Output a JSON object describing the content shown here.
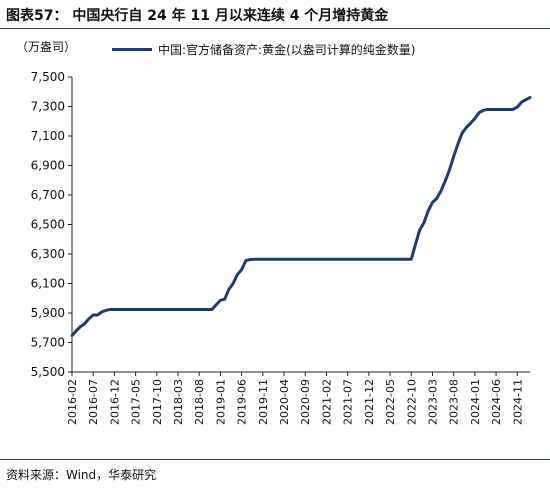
{
  "header": {
    "title": "图表57：  中国央行自 24 年 11 月以来连续 4 个月增持黄金",
    "source": "资料来源：Wind，华泰研究"
  },
  "chart_data": {
    "type": "line",
    "ylabel": "（万盎司）",
    "ylim": [
      5500,
      7500
    ],
    "yticks": [
      5500,
      5700,
      5900,
      6100,
      6300,
      6500,
      6700,
      6900,
      7100,
      7300,
      7500
    ],
    "ytick_labels": [
      "5,500",
      "5,700",
      "5,900",
      "6,100",
      "6,300",
      "6,500",
      "6,700",
      "6,900",
      "7,100",
      "7,300",
      "7,500"
    ],
    "xticks": [
      "2016-02",
      "2016-07",
      "2016-12",
      "2017-05",
      "2017-10",
      "2018-03",
      "2018-08",
      "2019-01",
      "2019-06",
      "2019-11",
      "2020-04",
      "2020-09",
      "2021-02",
      "2021-07",
      "2021-12",
      "2022-05",
      "2022-10",
      "2023-03",
      "2023-08",
      "2024-01",
      "2024-06",
      "2024-11"
    ],
    "grid": false,
    "legend_position": "top",
    "color": "#1f3b73",
    "series": [
      {
        "name": "中国:官方储备资产:黄金(以盎司计算的纯金数量)",
        "x": [
          "2016-02",
          "2016-03",
          "2016-04",
          "2016-05",
          "2016-06",
          "2016-07",
          "2016-08",
          "2016-09",
          "2016-10",
          "2016-11",
          "2016-12",
          "2017-01",
          "2017-02",
          "2017-03",
          "2017-04",
          "2017-05",
          "2017-06",
          "2017-07",
          "2017-08",
          "2017-09",
          "2017-10",
          "2017-11",
          "2017-12",
          "2018-01",
          "2018-02",
          "2018-03",
          "2018-04",
          "2018-05",
          "2018-06",
          "2018-07",
          "2018-08",
          "2018-09",
          "2018-10",
          "2018-11",
          "2018-12",
          "2019-01",
          "2019-02",
          "2019-03",
          "2019-04",
          "2019-05",
          "2019-06",
          "2019-07",
          "2019-08",
          "2019-09",
          "2019-10",
          "2019-11",
          "2019-12",
          "2020-01",
          "2020-02",
          "2020-03",
          "2020-04",
          "2020-05",
          "2020-06",
          "2020-07",
          "2020-08",
          "2020-09",
          "2020-10",
          "2020-11",
          "2020-12",
          "2021-01",
          "2021-02",
          "2021-03",
          "2021-04",
          "2021-05",
          "2021-06",
          "2021-07",
          "2021-08",
          "2021-09",
          "2021-10",
          "2021-11",
          "2021-12",
          "2022-01",
          "2022-02",
          "2022-03",
          "2022-04",
          "2022-05",
          "2022-06",
          "2022-07",
          "2022-08",
          "2022-09",
          "2022-10",
          "2022-11",
          "2022-12",
          "2023-01",
          "2023-02",
          "2023-03",
          "2023-04",
          "2023-05",
          "2023-06",
          "2023-07",
          "2023-08",
          "2023-09",
          "2023-10",
          "2023-11",
          "2023-12",
          "2024-01",
          "2024-02",
          "2024-03",
          "2024-04",
          "2024-05",
          "2024-06",
          "2024-07",
          "2024-08",
          "2024-09",
          "2024-10",
          "2024-11",
          "2024-12",
          "2025-01",
          "2025-02"
        ],
        "values": [
          5748,
          5779,
          5808,
          5828,
          5862,
          5886,
          5886,
          5907,
          5918,
          5924,
          5924,
          5924,
          5924,
          5924,
          5924,
          5924,
          5924,
          5924,
          5924,
          5924,
          5924,
          5924,
          5924,
          5924,
          5924,
          5924,
          5924,
          5924,
          5924,
          5924,
          5924,
          5924,
          5924,
          5924,
          5956,
          5986,
          5994,
          6061,
          6101,
          6161,
          6194,
          6256,
          6262,
          6264,
          6264,
          6264,
          6264,
          6264,
          6264,
          6264,
          6264,
          6264,
          6264,
          6264,
          6264,
          6264,
          6264,
          6264,
          6264,
          6264,
          6264,
          6264,
          6264,
          6264,
          6264,
          6264,
          6264,
          6264,
          6264,
          6264,
          6264,
          6264,
          6264,
          6264,
          6264,
          6264,
          6264,
          6264,
          6264,
          6264,
          6264,
          6367,
          6464,
          6512,
          6592,
          6650,
          6676,
          6727,
          6795,
          6869,
          6962,
          7046,
          7120,
          7158,
          7187,
          7219,
          7258,
          7274,
          7280,
          7280,
          7280,
          7280,
          7280,
          7280,
          7280,
          7296,
          7329,
          7345,
          7361
        ]
      }
    ]
  }
}
